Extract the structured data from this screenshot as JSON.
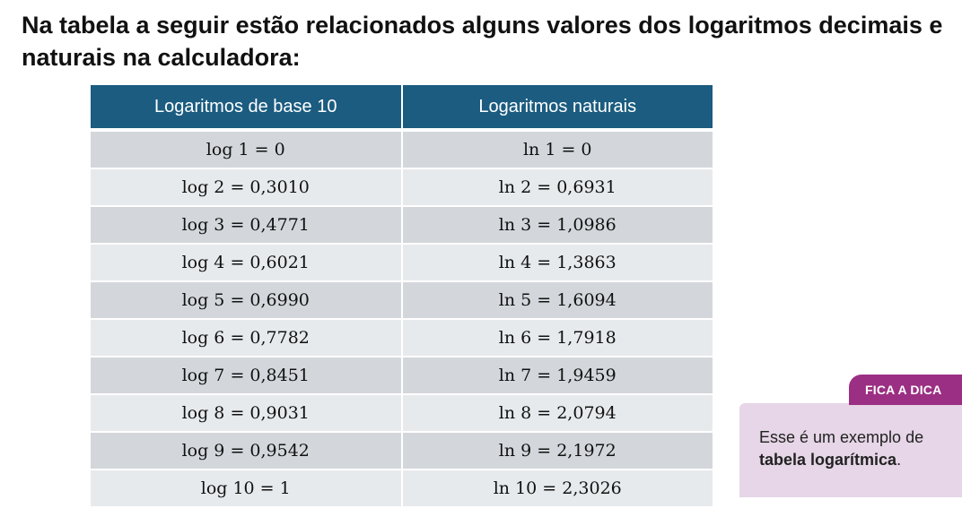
{
  "heading": "Na tabela a seguir estão relacionados alguns valores dos logaritmos decimais e naturais na calculadora:",
  "table": {
    "headers": [
      "Logaritmos de base 10",
      "Logaritmos naturais"
    ],
    "rows": [
      [
        "log 1 = 0",
        "ln 1 = 0"
      ],
      [
        "log 2 = 0,3010",
        "ln 2 = 0,6931"
      ],
      [
        "log 3 = 0,4771",
        "ln 3 = 1,0986"
      ],
      [
        "log 4 = 0,6021",
        "ln 4 = 1,3863"
      ],
      [
        "log 5 = 0,6990",
        "ln 5 = 1,6094"
      ],
      [
        "log 6 = 0,7782",
        "ln 6 = 1,7918"
      ],
      [
        "log 7 = 0,8451",
        "ln 7 = 1,9459"
      ],
      [
        "log 8 = 0,9031",
        "ln 8 = 2,0794"
      ],
      [
        "log 9 = 0,9542",
        "ln 9 = 2,1972"
      ],
      [
        "log 10 = 1",
        "ln 10 = 2,3026"
      ]
    ]
  },
  "tip": {
    "badge": "FICA A DICA",
    "text_before": "Esse é um exemplo de",
    "text_bold": "tabela logarítmica",
    "text_after": "."
  },
  "colors": {
    "header_bg": "#1b5c80",
    "row_dark": "#d3d7db",
    "row_light": "#e7eaed",
    "badge_bg": "#9b2f83",
    "tip_bg": "#e6d6e7"
  }
}
